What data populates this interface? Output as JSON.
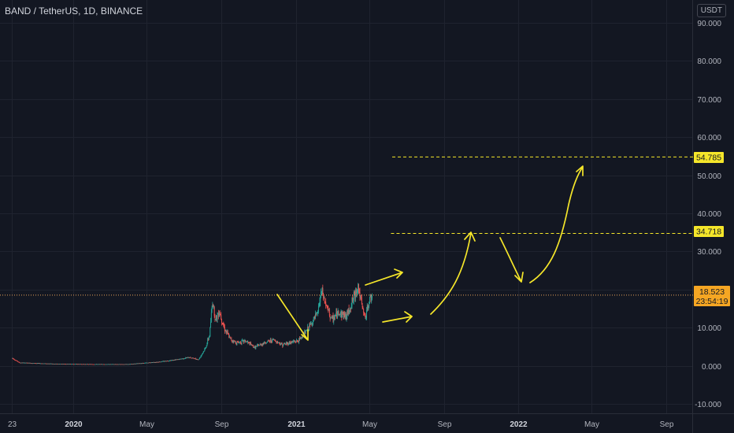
{
  "header": {
    "title": "BAND / TetherUS, 1D, BINANCE",
    "currency": "USDT"
  },
  "chart_data": {
    "type": "candlestick",
    "symbol": "BAND / TetherUS",
    "interval": "1D",
    "exchange": "BINANCE",
    "y_ticks": [
      "-10.000",
      "0.000",
      "10.000",
      "20.000",
      "30.000",
      "40.000",
      "50.000",
      "60.000",
      "70.000",
      "80.000",
      "90.000"
    ],
    "ylim": [
      -12.5,
      96
    ],
    "x_ticks": [
      {
        "label": "23",
        "date": "2019-09-23"
      },
      {
        "label": "2020",
        "date": "2020-01-01"
      },
      {
        "label": "May",
        "date": "2020-05-01"
      },
      {
        "label": "Sep",
        "date": "2020-09-01"
      },
      {
        "label": "2021",
        "date": "2021-01-01"
      },
      {
        "label": "May",
        "date": "2021-05-01"
      },
      {
        "label": "Sep",
        "date": "2021-09-01"
      },
      {
        "label": "2022",
        "date": "2022-01-01"
      },
      {
        "label": "May",
        "date": "2022-05-01"
      },
      {
        "label": "Sep",
        "date": "2022-09-01"
      }
    ],
    "xlim": [
      "2019-09-03",
      "2022-10-15"
    ],
    "price_path": [
      [
        "2019-09-23",
        2.0
      ],
      [
        "2019-10-05",
        0.8
      ],
      [
        "2019-12-01",
        0.5
      ],
      [
        "2020-02-01",
        0.4
      ],
      [
        "2020-04-01",
        0.4
      ],
      [
        "2020-05-20",
        1.0
      ],
      [
        "2020-06-20",
        1.6
      ],
      [
        "2020-07-10",
        2.2
      ],
      [
        "2020-07-25",
        1.6
      ],
      [
        "2020-08-05",
        4.5
      ],
      [
        "2020-08-12",
        8.0
      ],
      [
        "2020-08-17",
        17.0
      ],
      [
        "2020-08-22",
        12.0
      ],
      [
        "2020-08-28",
        14.5
      ],
      [
        "2020-09-05",
        10.0
      ],
      [
        "2020-09-15",
        7.0
      ],
      [
        "2020-09-25",
        6.0
      ],
      [
        "2020-10-10",
        6.5
      ],
      [
        "2020-10-25",
        4.8
      ],
      [
        "2020-11-10",
        6.0
      ],
      [
        "2020-11-25",
        6.8
      ],
      [
        "2020-12-10",
        5.5
      ],
      [
        "2020-12-25",
        6.2
      ],
      [
        "2021-01-05",
        6.5
      ],
      [
        "2021-01-20",
        9.5
      ],
      [
        "2021-02-05",
        13.5
      ],
      [
        "2021-02-12",
        19.5
      ],
      [
        "2021-02-20",
        15.5
      ],
      [
        "2021-03-01",
        12.0
      ],
      [
        "2021-03-12",
        14.0
      ],
      [
        "2021-03-25",
        13.0
      ],
      [
        "2021-04-05",
        17.5
      ],
      [
        "2021-04-13",
        21.0
      ],
      [
        "2021-04-20",
        15.0
      ],
      [
        "2021-04-25",
        12.5
      ],
      [
        "2021-05-01",
        17.0
      ],
      [
        "2021-05-06",
        18.52
      ]
    ],
    "last_price": {
      "value": 18.523,
      "label": "18.523",
      "countdown": "23:54:19"
    },
    "levels": [
      {
        "value": 54.785,
        "label": "54.785",
        "from_date": "2021-06-08"
      },
      {
        "value": 34.718,
        "label": "34.718",
        "from_date": "2021-06-06"
      }
    ],
    "colors": {
      "background": "#131722",
      "grid": "#1f232f",
      "up": "#26a69a",
      "down": "#ef5350",
      "annotation": "#f5e62a",
      "axis_text": "#b2b5be",
      "last_price_line": "#e8a25a"
    }
  }
}
